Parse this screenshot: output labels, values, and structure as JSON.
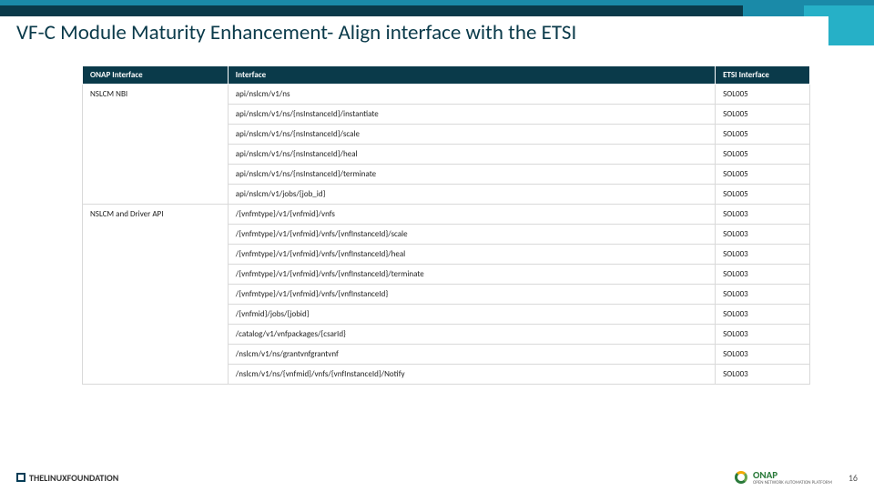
{
  "title": "VF-C Module Maturity Enhancement- Align interface with the ETSI",
  "headers": {
    "onap": "ONAP Interface",
    "iface": "Interface",
    "etsi": "ETSI Interface"
  },
  "groups": [
    {
      "onap": "NSLCM NBI",
      "rows": [
        {
          "iface": "api/nslcm/v1/ns",
          "etsi": "SOL005"
        },
        {
          "iface": "api/nslcm/v1/ns/{nsInstanceId}/instantiate",
          "etsi": "SOL005"
        },
        {
          "iface": "api/nslcm/v1/ns/{nsInstanceId}/scale",
          "etsi": "SOL005"
        },
        {
          "iface": "api/nslcm/v1/ns/{nsInstanceId}/heal",
          "etsi": "SOL005"
        },
        {
          "iface": "api/nslcm/v1/ns/{nsInstanceId}/terminate",
          "etsi": "SOL005"
        },
        {
          "iface": "api/nslcm/v1/jobs/{job_id}",
          "etsi": "SOL005"
        }
      ]
    },
    {
      "onap": "NSLCM and Driver API",
      "rows": [
        {
          "iface": "/{vnfmtype}/v1/{vnfmid}/vnfs",
          "etsi": "SOL003"
        },
        {
          "iface": "/{vnfmtype}/v1/{vnfmid}/vnfs/{vnfInstanceId}/scale",
          "etsi": "SOL003"
        },
        {
          "iface": "/{vnfmtype}/v1/{vnfmid}/vnfs/{vnfInstanceId}/heal",
          "etsi": "SOL003"
        },
        {
          "iface": "/{vnfmtype}/v1/{vnfmid}/vnfs/{vnfInstanceId}/terminate",
          "etsi": "SOL003"
        },
        {
          "iface": "/{vnfmtype}/v1/{vnfmid}/vnfs/{vnfInstanceId}",
          "etsi": "SOL003"
        },
        {
          "iface": "/{vnfmid}/jobs/{jobid}",
          "etsi": "SOL003"
        },
        {
          "iface": "/catalog/v1/vnfpackages/{csarId}",
          "etsi": "SOL003"
        },
        {
          "iface": "/nslcm/v1/ns/grantvnfgrantvnf",
          "etsi": "SOL003"
        },
        {
          "iface": "/nslcm/v1/ns/{vnfmid}/vnfs/{vnfInstanceId}/Notify",
          "etsi": "SOL003"
        }
      ]
    }
  ],
  "footer": {
    "linux": "THELINUXFOUNDATION",
    "onap": "ONAP",
    "onap_sub": "OPEN NETWORK AUTOMATION PLATFORM",
    "page": "16"
  }
}
